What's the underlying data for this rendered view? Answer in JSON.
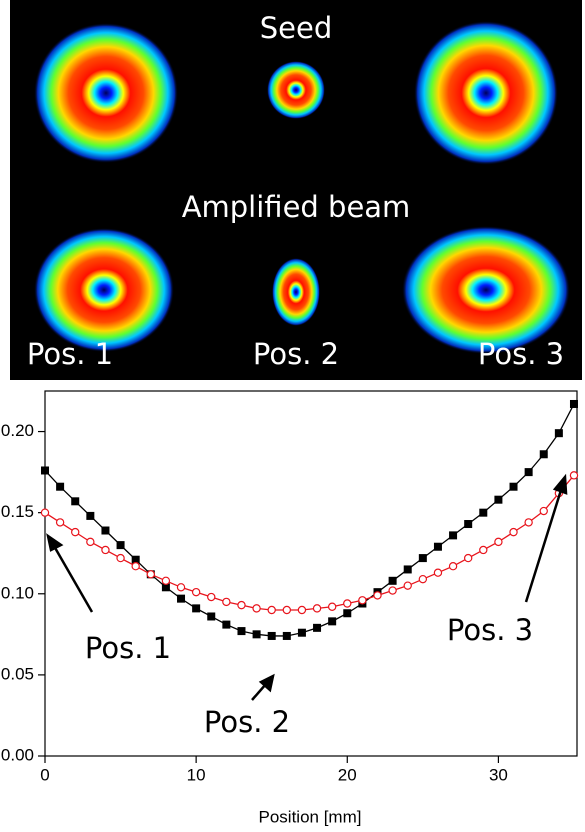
{
  "image_panel": {
    "labels": [
      "Seed",
      "Amplified beam",
      "Pos. 1",
      "Pos. 2",
      "Pos. 3"
    ]
  },
  "chart_data": {
    "type": "line",
    "x_label": "Position [mm]",
    "x": [
      0,
      1,
      2,
      3,
      4,
      5,
      6,
      7,
      8,
      9,
      10,
      11,
      12,
      13,
      14,
      15,
      16,
      17,
      18,
      19,
      20,
      21,
      22,
      23,
      24,
      25,
      26,
      27,
      28,
      29,
      30,
      31,
      32,
      33,
      34,
      35
    ],
    "series": [
      {
        "color": "#000000",
        "marker": "square",
        "values": [
          0.176,
          0.166,
          0.157,
          0.148,
          0.139,
          0.13,
          0.121,
          0.112,
          0.104,
          0.097,
          0.091,
          0.086,
          0.081,
          0.077,
          0.075,
          0.074,
          0.074,
          0.076,
          0.079,
          0.083,
          0.088,
          0.094,
          0.101,
          0.108,
          0.115,
          0.122,
          0.129,
          0.136,
          0.143,
          0.15,
          0.158,
          0.166,
          0.175,
          0.186,
          0.199,
          0.217
        ]
      },
      {
        "color": "#e8141c",
        "marker": "circle-open",
        "values": [
          0.15,
          0.144,
          0.138,
          0.132,
          0.127,
          0.122,
          0.117,
          0.112,
          0.108,
          0.104,
          0.101,
          0.098,
          0.095,
          0.093,
          0.091,
          0.09,
          0.09,
          0.09,
          0.091,
          0.092,
          0.094,
          0.096,
          0.099,
          0.102,
          0.105,
          0.109,
          0.113,
          0.117,
          0.122,
          0.127,
          0.132,
          0.138,
          0.144,
          0.151,
          0.162,
          0.173
        ]
      }
    ],
    "annotations": [
      "Pos. 1",
      "Pos. 2",
      "Pos. 3"
    ],
    "xlim": [
      0,
      35.2
    ],
    "xticks": [
      0,
      10,
      20,
      30
    ],
    "ylim": [
      0,
      0.225
    ],
    "yticks": [
      {
        "value": 0,
        "label": "0.00"
      },
      {
        "value": 0.05,
        "label": "0.05"
      },
      {
        "value": 0.1,
        "label": "0.10"
      },
      {
        "value": 0.15,
        "label": "0.15"
      },
      {
        "value": 0.2,
        "label": "0.20"
      }
    ]
  }
}
